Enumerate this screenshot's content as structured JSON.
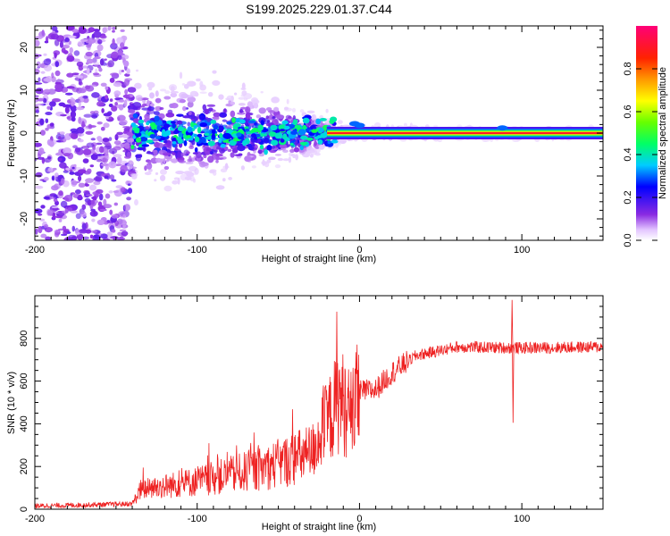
{
  "title": "S199.2025.229.01.37.C44",
  "chart_data": [
    {
      "type": "heatmap",
      "name": "spectrogram",
      "xlabel": "Height of straight line (km)",
      "ylabel": "Frequency (Hz)",
      "xlim": [
        -200,
        150
      ],
      "ylim": [
        -25,
        25
      ],
      "xticks": [
        -200,
        -100,
        0,
        100
      ],
      "xtick_labels": [
        "-200",
        "-100",
        "0",
        "100"
      ],
      "yticks": [
        -20,
        -10,
        0,
        10,
        20
      ],
      "ytick_labels": [
        "-20",
        "-10",
        "0",
        "10",
        "20"
      ],
      "colorbar": {
        "label": "Normalized spectral amplitude",
        "range": [
          0,
          1
        ],
        "ticks": [
          0.0,
          0.2,
          0.4,
          0.6,
          0.8
        ],
        "tick_labels": [
          "0.0",
          "0.2",
          "0.4",
          "0.6",
          "0.8"
        ]
      },
      "features": {
        "signal_line": {
          "x_range": [
            -20,
            150
          ],
          "frequency": 0,
          "amplitude": 0.9
        },
        "noise_spread_hz": [
          {
            "x": -200,
            "spread": 25
          },
          {
            "x": -145,
            "spread": 25
          },
          {
            "x": -140,
            "spread": 10
          },
          {
            "x": -100,
            "spread": 9
          },
          {
            "x": -50,
            "spread": 6
          },
          {
            "x": -20,
            "spread": 3
          },
          {
            "x": 0,
            "spread": 1.5
          },
          {
            "x": 150,
            "spread": 1
          }
        ]
      }
    },
    {
      "type": "line",
      "name": "snr",
      "xlabel": "Height of straight line (km)",
      "ylabel": "SNR (10 * v/v)",
      "xlim": [
        -200,
        150
      ],
      "ylim": [
        0,
        1000
      ],
      "xticks": [
        -200,
        -100,
        0,
        100
      ],
      "xtick_labels": [
        "-200",
        "-100",
        "0",
        "100"
      ],
      "yticks": [
        0,
        200,
        400,
        600,
        800
      ],
      "ytick_labels": [
        "0",
        "200",
        "400",
        "600",
        "800"
      ],
      "color": "#ee2222",
      "series_outline": [
        {
          "x": -200,
          "y": 15
        },
        {
          "x": -140,
          "y": 25
        },
        {
          "x": -135,
          "y": 90
        },
        {
          "x": -100,
          "y": 130
        },
        {
          "x": -60,
          "y": 190
        },
        {
          "x": -30,
          "y": 260
        },
        {
          "x": -12,
          "y": 520
        },
        {
          "x": -5,
          "y": 430
        },
        {
          "x": 0,
          "y": 550
        },
        {
          "x": 10,
          "y": 560
        },
        {
          "x": 20,
          "y": 640
        },
        {
          "x": 35,
          "y": 720
        },
        {
          "x": 60,
          "y": 760
        },
        {
          "x": 100,
          "y": 755
        },
        {
          "x": 150,
          "y": 760
        }
      ],
      "spikes": [
        {
          "x": -14,
          "y": 925
        },
        {
          "x": -13,
          "y": 480
        },
        {
          "x": 94,
          "y": 980
        },
        {
          "x": 94.6,
          "y": 405
        }
      ]
    }
  ]
}
